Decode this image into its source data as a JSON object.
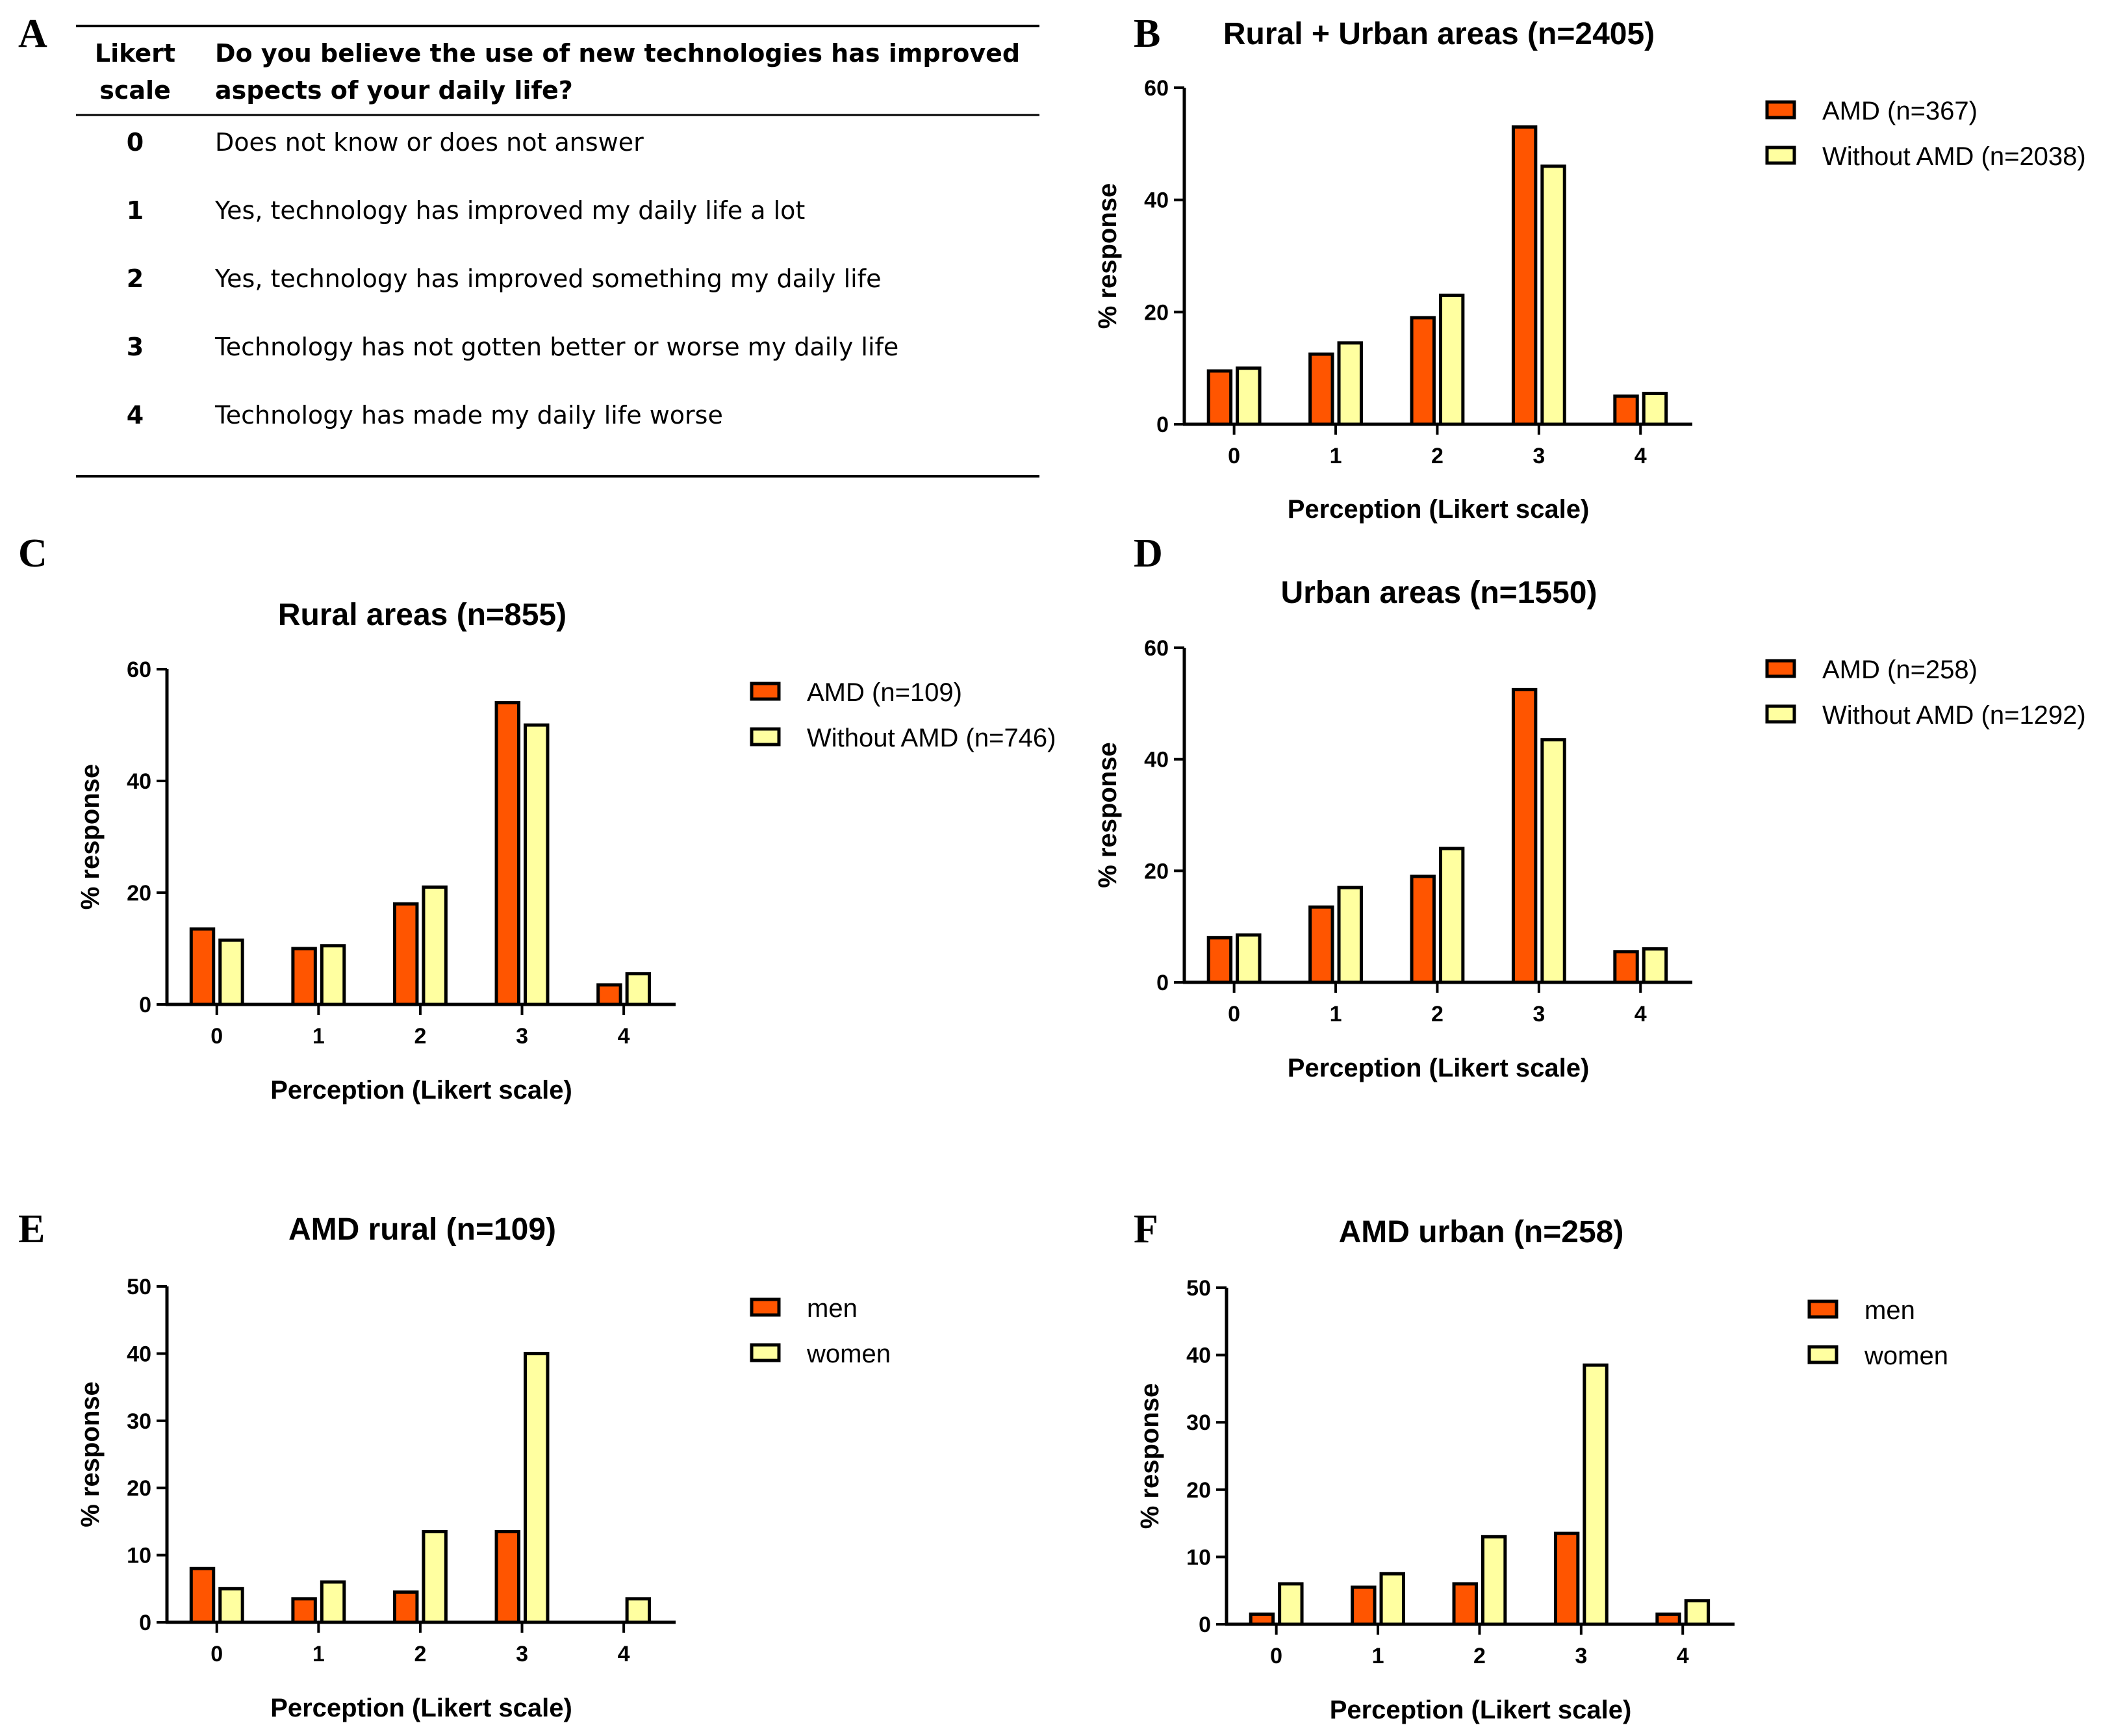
{
  "panel_a": {
    "letter": "A",
    "header_scale_line1": "Likert",
    "header_scale_line2": "scale",
    "header_question_line1": "Do you believe the use of new technologies has improved",
    "header_question_line2": "aspects of your daily life?",
    "rows": [
      {
        "score": "0",
        "text": "Does not know or does not answer"
      },
      {
        "score": "1",
        "text": "Yes, technology has improved my daily life a lot"
      },
      {
        "score": "2",
        "text": "Yes, technology has improved something my daily life"
      },
      {
        "score": "3",
        "text": "Technology has not gotten better or worse my daily life"
      },
      {
        "score": "4",
        "text": "Technology has made my daily life worse"
      }
    ]
  },
  "colors": {
    "series1": "#FF5500",
    "series2": "#FFFFA0",
    "stroke": "#000000"
  },
  "chart_data": [
    {
      "letter": "B",
      "type": "bar",
      "title": "Rural + Urban areas (n=2405)",
      "xlabel": "Perception (Likert scale)",
      "ylabel": "% response",
      "categories": [
        "0",
        "1",
        "2",
        "3",
        "4"
      ],
      "ylim": [
        0,
        60
      ],
      "yticks": [
        "0",
        "20",
        "40",
        "60"
      ],
      "series": [
        {
          "name": "AMD (n=367)",
          "values": [
            9.5,
            12.5,
            19,
            53,
            5
          ]
        },
        {
          "name": "Without AMD (n=2038)",
          "values": [
            10,
            14.5,
            23,
            46,
            5.5
          ]
        }
      ],
      "legend": "top-right"
    },
    {
      "letter": "C",
      "type": "bar",
      "title": "Rural areas (n=855)",
      "xlabel": "Perception (Likert scale)",
      "ylabel": "% response",
      "categories": [
        "0",
        "1",
        "2",
        "3",
        "4"
      ],
      "ylim": [
        0,
        60
      ],
      "yticks": [
        "0",
        "20",
        "40",
        "60"
      ],
      "series": [
        {
          "name": "AMD (n=109)",
          "values": [
            13.5,
            10,
            18,
            54,
            3.5
          ]
        },
        {
          "name": "Without AMD (n=746)",
          "values": [
            11.5,
            10.5,
            21,
            50,
            5.5
          ]
        }
      ],
      "legend": "top-right"
    },
    {
      "letter": "D",
      "type": "bar",
      "title": "Urban areas (n=1550)",
      "xlabel": "Perception (Likert scale)",
      "ylabel": "% response",
      "categories": [
        "0",
        "1",
        "2",
        "3",
        "4"
      ],
      "ylim": [
        0,
        60
      ],
      "yticks": [
        "0",
        "20",
        "40",
        "60"
      ],
      "series": [
        {
          "name": "AMD (n=258)",
          "values": [
            8,
            13.5,
            19,
            52.5,
            5.5
          ]
        },
        {
          "name": "Without AMD (n=1292)",
          "values": [
            8.5,
            17,
            24,
            43.5,
            6
          ]
        }
      ],
      "legend": "top-right"
    },
    {
      "letter": "E",
      "type": "bar",
      "title": "AMD rural (n=109)",
      "xlabel": "Perception (Likert scale)",
      "ylabel": "% response",
      "categories": [
        "0",
        "1",
        "2",
        "3",
        "4"
      ],
      "ylim": [
        0,
        50
      ],
      "yticks": [
        "0",
        "10",
        "20",
        "30",
        "40",
        "50"
      ],
      "series": [
        {
          "name": "men",
          "values": [
            8,
            3.5,
            4.5,
            13.5,
            0
          ]
        },
        {
          "name": "women",
          "values": [
            5,
            6,
            13.5,
            40,
            3.5
          ]
        }
      ],
      "legend": "top-right"
    },
    {
      "letter": "F",
      "type": "bar",
      "title": "AMD urban (n=258)",
      "xlabel": "Perception (Likert scale)",
      "ylabel": "% response",
      "categories": [
        "0",
        "1",
        "2",
        "3",
        "4"
      ],
      "ylim": [
        0,
        50
      ],
      "yticks": [
        "0",
        "10",
        "20",
        "30",
        "40",
        "50"
      ],
      "series": [
        {
          "name": "men",
          "values": [
            1.5,
            5.5,
            6,
            13.5,
            1.5
          ]
        },
        {
          "name": "women",
          "values": [
            6,
            7.5,
            13,
            38.5,
            3.5
          ]
        }
      ],
      "legend": "top-right"
    }
  ]
}
